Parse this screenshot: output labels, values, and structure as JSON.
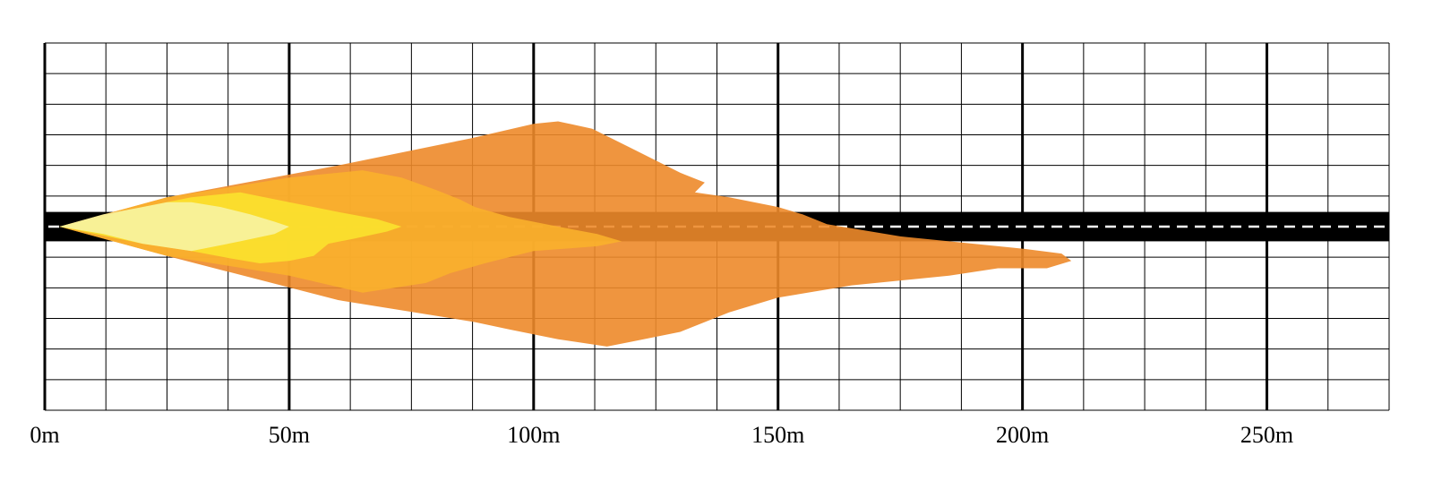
{
  "chart_data": {
    "type": "area",
    "title": "",
    "xlabel": "",
    "ylabel": "",
    "x_unit": "m",
    "xlim": [
      0,
      275
    ],
    "ylim": [
      -75,
      75
    ],
    "x_ticks": [
      0,
      50,
      100,
      150,
      200,
      250
    ],
    "tick_labels": [
      "0m",
      "50m",
      "100m",
      "150m",
      "200m",
      "250m"
    ],
    "grid": true,
    "minor_grid_step": 12.5,
    "road": {
      "center": 0,
      "half_width": 6,
      "color": "#000000",
      "centerline_color": "#ffffff"
    },
    "series": [
      {
        "color": "#ed8a2a",
        "points": [
          [
            3,
            0
          ],
          [
            25,
            12
          ],
          [
            60,
            25
          ],
          [
            87,
            36
          ],
          [
            100,
            42
          ],
          [
            105,
            43
          ],
          [
            112,
            40
          ],
          [
            120,
            32
          ],
          [
            130,
            22
          ],
          [
            135,
            18
          ],
          [
            133,
            14
          ],
          [
            140,
            12
          ],
          [
            150,
            8
          ],
          [
            155,
            5
          ],
          [
            160,
            1
          ],
          [
            175,
            -4
          ],
          [
            190,
            -7
          ],
          [
            200,
            -9
          ],
          [
            208,
            -11
          ],
          [
            210,
            -14
          ],
          [
            205,
            -17
          ],
          [
            195,
            -17
          ],
          [
            185,
            -20
          ],
          [
            165,
            -24
          ],
          [
            150,
            -29
          ],
          [
            140,
            -35
          ],
          [
            130,
            -43
          ],
          [
            120,
            -47
          ],
          [
            115,
            -49
          ],
          [
            105,
            -46
          ],
          [
            95,
            -42
          ],
          [
            88,
            -39
          ],
          [
            60,
            -30
          ],
          [
            25,
            -12
          ],
          [
            3,
            0
          ]
        ]
      },
      {
        "color": "#f9b02c",
        "points": [
          [
            3,
            0
          ],
          [
            25,
            12
          ],
          [
            50,
            20
          ],
          [
            65,
            23
          ],
          [
            73,
            20
          ],
          [
            80,
            15
          ],
          [
            85,
            11
          ],
          [
            88,
            8
          ],
          [
            95,
            4
          ],
          [
            105,
            0
          ],
          [
            113,
            -3
          ],
          [
            118,
            -6
          ],
          [
            113,
            -8
          ],
          [
            100,
            -10
          ],
          [
            90,
            -15
          ],
          [
            83,
            -19
          ],
          [
            78,
            -23
          ],
          [
            65,
            -27
          ],
          [
            50,
            -20
          ],
          [
            25,
            -12
          ],
          [
            3,
            0
          ]
        ]
      },
      {
        "color": "#fbe22d",
        "points": [
          [
            3,
            0
          ],
          [
            20,
            8
          ],
          [
            30,
            12
          ],
          [
            40,
            14
          ],
          [
            45,
            12
          ],
          [
            50,
            10
          ],
          [
            55,
            8
          ],
          [
            60,
            6
          ],
          [
            68,
            3
          ],
          [
            73,
            0
          ],
          [
            70,
            -2
          ],
          [
            63,
            -5
          ],
          [
            58,
            -7
          ],
          [
            55,
            -12
          ],
          [
            50,
            -14
          ],
          [
            44,
            -15
          ],
          [
            38,
            -13
          ],
          [
            30,
            -10
          ],
          [
            20,
            -7
          ],
          [
            3,
            0
          ]
        ]
      },
      {
        "color": "#f7f3a2",
        "points": [
          [
            3,
            0
          ],
          [
            12,
            5
          ],
          [
            20,
            8
          ],
          [
            25,
            10
          ],
          [
            30,
            10
          ],
          [
            36,
            8
          ],
          [
            42,
            5
          ],
          [
            47,
            2
          ],
          [
            50,
            0
          ],
          [
            47,
            -3
          ],
          [
            40,
            -6
          ],
          [
            35,
            -8
          ],
          [
            30,
            -10
          ],
          [
            20,
            -7
          ],
          [
            12,
            -3
          ],
          [
            3,
            0
          ]
        ]
      }
    ]
  }
}
